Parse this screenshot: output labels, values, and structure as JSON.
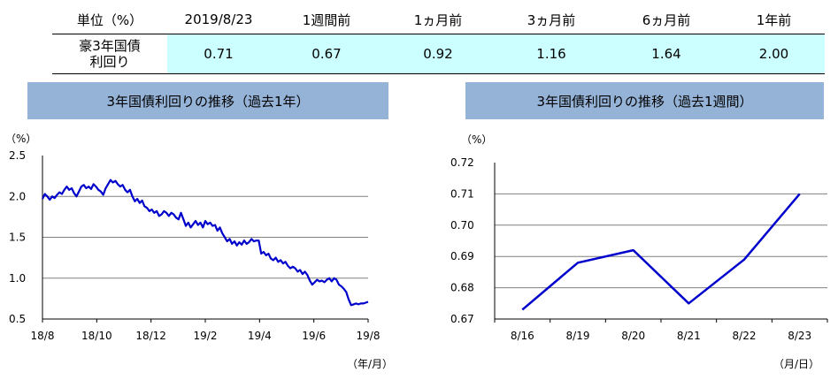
{
  "table": {
    "unit_label": "単位（%）",
    "headers": [
      "2019/8/23",
      "1週間前",
      "1ヵ月前",
      "3ヵ月前",
      "6ヵ月前",
      "1年前"
    ],
    "row_label_line1": "豪3年国債",
    "row_label_line2": "利回り",
    "values": [
      "0.71",
      "0.67",
      "0.92",
      "1.16",
      "1.64",
      "2.00"
    ]
  },
  "colors": {
    "line": "#0000cc",
    "title_bg": "#95b3d7",
    "highlight": "#ccffff",
    "grid": "#808080"
  },
  "chart_data": [
    {
      "type": "line",
      "title": "3年国債利回りの推移（過去1年）",
      "y_unit": "（%）",
      "x_unit": "（年/月）",
      "ylim": [
        0.5,
        2.5
      ],
      "yticks": [
        "2.5",
        "2.0",
        "1.5",
        "1.0",
        "0.5"
      ],
      "ytick_values": [
        2.5,
        2.0,
        1.5,
        1.0,
        0.5
      ],
      "xticks": [
        "18/8",
        "18/10",
        "18/12",
        "19/2",
        "19/4",
        "19/6",
        "19/8"
      ],
      "grid": true,
      "legend": "none",
      "series": [
        {
          "values": [
            1.97,
            2.03,
            2.0,
            1.96,
            2.0,
            1.98,
            2.02,
            2.05,
            2.03,
            2.08,
            2.12,
            2.08,
            2.1,
            2.04,
            2.0,
            2.06,
            2.12,
            2.14,
            2.1,
            2.12,
            2.09,
            2.15,
            2.12,
            2.08,
            2.06,
            2.02,
            2.1,
            2.15,
            2.2,
            2.17,
            2.19,
            2.15,
            2.12,
            2.14,
            2.08,
            2.05,
            2.08,
            2.0,
            1.94,
            1.97,
            1.92,
            1.95,
            1.88,
            1.86,
            1.82,
            1.84,
            1.8,
            1.82,
            1.76,
            1.78,
            1.82,
            1.8,
            1.76,
            1.8,
            1.78,
            1.74,
            1.72,
            1.8,
            1.72,
            1.64,
            1.68,
            1.62,
            1.66,
            1.7,
            1.65,
            1.68,
            1.62,
            1.7,
            1.66,
            1.68,
            1.64,
            1.65,
            1.58,
            1.62,
            1.55,
            1.5,
            1.45,
            1.48,
            1.42,
            1.45,
            1.4,
            1.44,
            1.41,
            1.46,
            1.42,
            1.44,
            1.48,
            1.45,
            1.46,
            1.46,
            1.3,
            1.32,
            1.28,
            1.3,
            1.24,
            1.22,
            1.25,
            1.2,
            1.22,
            1.18,
            1.2,
            1.15,
            1.12,
            1.14,
            1.12,
            1.08,
            1.1,
            1.05,
            1.08,
            1.04,
            0.97,
            0.92,
            0.95,
            0.98,
            0.96,
            0.97,
            0.95,
            0.98,
            1.0,
            0.96,
            1.0,
            0.98,
            0.92,
            0.9,
            0.87,
            0.83,
            0.74,
            0.67,
            0.68,
            0.69,
            0.68,
            0.69,
            0.69,
            0.7,
            0.71
          ]
        }
      ]
    },
    {
      "type": "line",
      "title": "3年国債利回りの推移（過去1週間）",
      "y_unit": "（%）",
      "x_unit": "（月/日）",
      "ylim": [
        0.67,
        0.72
      ],
      "yticks": [
        "0.72",
        "0.71",
        "0.70",
        "0.69",
        "0.68",
        "0.67"
      ],
      "ytick_values": [
        0.72,
        0.71,
        0.7,
        0.69,
        0.68,
        0.67
      ],
      "categories": [
        "8/16",
        "8/19",
        "8/20",
        "8/21",
        "8/22",
        "8/23"
      ],
      "grid": true,
      "legend": "none",
      "series": [
        {
          "values": [
            0.673,
            0.688,
            0.692,
            0.675,
            0.689,
            0.71
          ]
        }
      ]
    }
  ]
}
